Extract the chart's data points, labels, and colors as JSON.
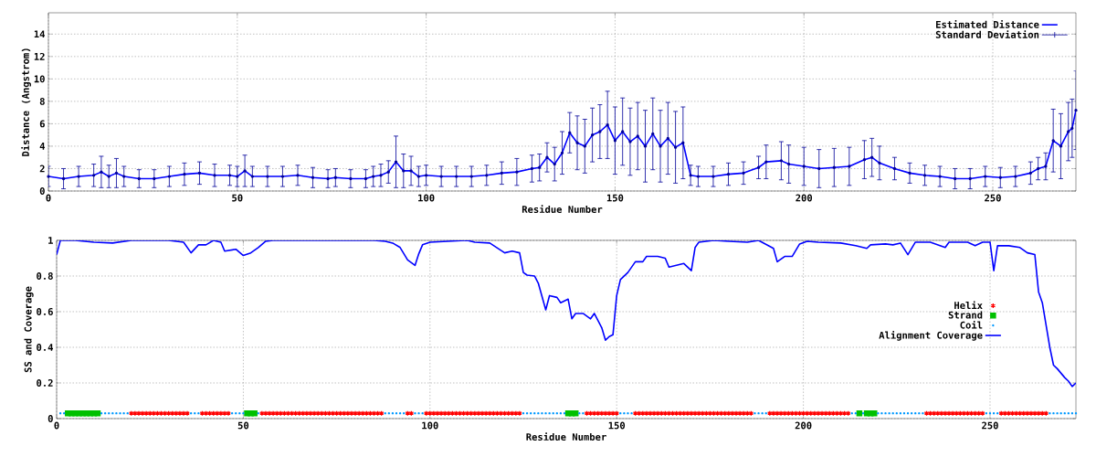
{
  "chart_data": [
    {
      "type": "line",
      "xlabel": "Residue Number",
      "ylabel": "Distance (Angstrom)",
      "xlim": [
        0,
        272
      ],
      "ylim": [
        0,
        15.9
      ],
      "xticks": [
        0,
        50,
        100,
        150,
        200,
        250
      ],
      "yticks": [
        0,
        2,
        4,
        6,
        8,
        10,
        12,
        14
      ],
      "grid": true,
      "legend": "top right",
      "x": [
        0,
        4,
        8,
        12,
        14,
        16,
        18,
        20,
        24,
        28,
        32,
        36,
        40,
        44,
        48,
        50,
        52,
        54,
        58,
        62,
        66,
        70,
        74,
        76,
        80,
        84,
        86,
        88,
        90,
        92,
        94,
        96,
        98,
        100,
        104,
        108,
        112,
        116,
        120,
        124,
        128,
        130,
        132,
        134,
        136,
        138,
        140,
        142,
        144,
        146,
        148,
        150,
        152,
        154,
        156,
        158,
        160,
        162,
        164,
        166,
        168,
        170,
        172,
        176,
        180,
        184,
        188,
        190,
        194,
        196,
        200,
        204,
        208,
        212,
        216,
        218,
        220,
        224,
        228,
        232,
        236,
        240,
        244,
        248,
        252,
        256,
        260,
        262,
        264,
        266,
        268,
        270,
        271,
        272
      ],
      "series": [
        {
          "name": "Estimated Distance",
          "color": "#0000ff",
          "values": [
            1.3,
            1.1,
            1.3,
            1.4,
            1.7,
            1.3,
            1.6,
            1.3,
            1.1,
            1.1,
            1.3,
            1.5,
            1.6,
            1.4,
            1.4,
            1.3,
            1.8,
            1.3,
            1.3,
            1.3,
            1.4,
            1.2,
            1.1,
            1.2,
            1.1,
            1.1,
            1.3,
            1.4,
            1.7,
            2.6,
            1.8,
            1.8,
            1.3,
            1.4,
            1.3,
            1.3,
            1.3,
            1.4,
            1.6,
            1.7,
            2.0,
            2.1,
            3.0,
            2.4,
            3.4,
            5.2,
            4.3,
            4.0,
            5.0,
            5.3,
            5.9,
            4.5,
            5.3,
            4.4,
            4.9,
            4.0,
            5.1,
            4.0,
            4.7,
            3.9,
            4.3,
            1.4,
            1.3,
            1.3,
            1.5,
            1.6,
            2.1,
            2.6,
            2.7,
            2.4,
            2.2,
            2.0,
            2.1,
            2.2,
            2.8,
            3.0,
            2.5,
            2.0,
            1.6,
            1.4,
            1.3,
            1.1,
            1.1,
            1.3,
            1.2,
            1.3,
            1.6,
            2.0,
            2.2,
            4.5,
            4.0,
            5.3,
            5.6,
            7.2
          ]
        },
        {
          "name": "Standard Deviation",
          "type": "scatter",
          "marker": "none",
          "color": "#000099",
          "values": [
            1.3,
            1.1,
            1.3,
            1.4,
            1.7,
            1.3,
            1.6,
            1.3,
            1.1,
            1.1,
            1.3,
            1.5,
            1.6,
            1.4,
            1.4,
            1.3,
            1.8,
            1.3,
            1.3,
            1.3,
            1.4,
            1.2,
            1.1,
            1.2,
            1.1,
            1.1,
            1.3,
            1.4,
            1.7,
            2.6,
            1.8,
            1.8,
            1.3,
            1.4,
            1.3,
            1.3,
            1.3,
            1.4,
            1.6,
            1.7,
            2.0,
            2.1,
            3.0,
            2.4,
            3.4,
            5.2,
            4.3,
            4.0,
            5.0,
            5.3,
            5.9,
            4.5,
            5.3,
            4.4,
            4.9,
            4.0,
            5.1,
            4.0,
            4.7,
            3.9,
            4.3,
            1.4,
            1.3,
            1.3,
            1.5,
            1.6,
            2.1,
            2.6,
            2.7,
            2.4,
            2.2,
            2.0,
            2.1,
            2.2,
            2.8,
            3.0,
            2.5,
            2.0,
            1.6,
            1.4,
            1.3,
            1.1,
            1.1,
            1.3,
            1.2,
            1.3,
            1.6,
            2.0,
            2.2,
            4.5,
            4.0,
            5.3,
            5.6,
            7.2
          ],
          "errors": [
            0.9,
            0.9,
            0.9,
            1.0,
            1.4,
            1.0,
            1.3,
            0.9,
            0.8,
            0.8,
            0.9,
            1.0,
            1.0,
            1.0,
            0.9,
            0.9,
            1.4,
            0.9,
            0.9,
            0.9,
            0.9,
            0.9,
            0.8,
            0.8,
            0.8,
            0.8,
            0.9,
            1.0,
            1.0,
            2.3,
            1.5,
            1.3,
            0.9,
            0.9,
            0.9,
            0.9,
            0.9,
            0.9,
            1.0,
            1.2,
            1.2,
            1.2,
            1.3,
            1.5,
            1.9,
            1.8,
            2.4,
            2.4,
            2.4,
            2.4,
            3.0,
            3.0,
            3.0,
            3.0,
            3.0,
            3.2,
            3.2,
            3.2,
            3.2,
            3.2,
            3.2,
            0.9,
            0.9,
            0.9,
            1.0,
            1.0,
            1.0,
            1.5,
            1.7,
            1.7,
            1.7,
            1.7,
            1.7,
            1.7,
            1.7,
            1.7,
            1.5,
            1.0,
            0.9,
            0.9,
            0.9,
            0.9,
            0.9,
            0.9,
            0.9,
            0.9,
            1.0,
            1.0,
            1.2,
            2.8,
            2.9,
            2.6,
            2.6,
            3.5
          ]
        }
      ]
    },
    {
      "type": "line",
      "xlabel": "Residue Number",
      "ylabel": "SS and Coverage",
      "xlim": [
        0,
        273
      ],
      "ylim": [
        0,
        1
      ],
      "xticks": [
        0,
        50,
        100,
        150,
        200,
        250
      ],
      "yticks": [
        0,
        0.2,
        0.4,
        0.6,
        0.8,
        1
      ],
      "grid": true,
      "legend": "right",
      "series": [
        {
          "name": "Helix",
          "type": "scatter",
          "marker": "cross",
          "color": "#ff0000",
          "x": [
            20,
            21,
            22,
            23,
            24,
            25,
            26,
            27,
            28,
            29,
            30,
            31,
            32,
            33,
            34,
            35,
            39,
            40,
            41,
            42,
            43,
            44,
            45,
            46,
            55,
            56,
            57,
            58,
            59,
            60,
            61,
            62,
            63,
            64,
            65,
            66,
            67,
            68,
            69,
            70,
            71,
            72,
            73,
            74,
            75,
            76,
            77,
            78,
            79,
            80,
            81,
            82,
            83,
            84,
            85,
            86,
            87,
            94,
            95,
            99,
            100,
            101,
            102,
            103,
            104,
            105,
            106,
            107,
            108,
            109,
            110,
            111,
            112,
            113,
            114,
            115,
            116,
            117,
            118,
            119,
            120,
            121,
            122,
            123,
            124,
            142,
            143,
            144,
            145,
            146,
            147,
            148,
            149,
            150,
            155,
            156,
            157,
            158,
            159,
            160,
            161,
            162,
            163,
            164,
            165,
            166,
            167,
            168,
            169,
            170,
            171,
            172,
            173,
            174,
            175,
            176,
            177,
            178,
            179,
            180,
            181,
            182,
            183,
            184,
            185,
            186,
            191,
            192,
            193,
            194,
            195,
            196,
            197,
            198,
            199,
            200,
            201,
            202,
            203,
            204,
            205,
            206,
            207,
            208,
            209,
            210,
            211,
            212,
            233,
            234,
            235,
            236,
            237,
            238,
            239,
            240,
            241,
            242,
            243,
            244,
            245,
            246,
            247,
            248,
            253,
            254,
            255,
            256,
            257,
            258,
            259,
            260,
            261,
            262,
            263,
            264,
            265
          ],
          "values": [
            0.03,
            0.03,
            0.03,
            0.03,
            0.03,
            0.03,
            0.03,
            0.03,
            0.03,
            0.03,
            0.03,
            0.03,
            0.03,
            0.03,
            0.03,
            0.03,
            0.03,
            0.03,
            0.03,
            0.03,
            0.03,
            0.03,
            0.03,
            0.03,
            0.03,
            0.03,
            0.03,
            0.03,
            0.03,
            0.03,
            0.03,
            0.03,
            0.03,
            0.03,
            0.03,
            0.03,
            0.03,
            0.03,
            0.03,
            0.03,
            0.03,
            0.03,
            0.03,
            0.03,
            0.03,
            0.03,
            0.03,
            0.03,
            0.03,
            0.03,
            0.03,
            0.03,
            0.03,
            0.03,
            0.03,
            0.03,
            0.03,
            0.03,
            0.03,
            0.03,
            0.03,
            0.03,
            0.03,
            0.03,
            0.03,
            0.03,
            0.03,
            0.03,
            0.03,
            0.03,
            0.03,
            0.03,
            0.03,
            0.03,
            0.03,
            0.03,
            0.03,
            0.03,
            0.03,
            0.03,
            0.03,
            0.03,
            0.03,
            0.03,
            0.03,
            0.03,
            0.03,
            0.03,
            0.03,
            0.03,
            0.03,
            0.03,
            0.03,
            0.03,
            0.03,
            0.03,
            0.03,
            0.03,
            0.03,
            0.03,
            0.03,
            0.03,
            0.03,
            0.03,
            0.03,
            0.03,
            0.03,
            0.03,
            0.03,
            0.03,
            0.03,
            0.03,
            0.03,
            0.03,
            0.03,
            0.03,
            0.03,
            0.03,
            0.03,
            0.03,
            0.03,
            0.03,
            0.03,
            0.03,
            0.03,
            0.03,
            0.03,
            0.03,
            0.03,
            0.03,
            0.03,
            0.03,
            0.03,
            0.03,
            0.03,
            0.03,
            0.03,
            0.03,
            0.03,
            0.03,
            0.03,
            0.03,
            0.03,
            0.03,
            0.03,
            0.03,
            0.03,
            0.03,
            0.03,
            0.03,
            0.03,
            0.03,
            0.03,
            0.03,
            0.03,
            0.03,
            0.03,
            0.03,
            0.03,
            0.03,
            0.03,
            0.03,
            0.03,
            0.03,
            0.03,
            0.03,
            0.03,
            0.03,
            0.03,
            0.03,
            0.03,
            0.03,
            0.03,
            0.03,
            0.03,
            0.03,
            0.03
          ]
        },
        {
          "name": "Strand",
          "type": "scatter",
          "marker": "square",
          "color": "#00c000",
          "x": [
            3,
            4,
            5,
            6,
            7,
            8,
            9,
            10,
            11,
            51,
            52,
            53,
            137,
            138,
            139,
            215,
            217,
            218,
            219
          ],
          "values": [
            0.03,
            0.03,
            0.03,
            0.03,
            0.03,
            0.03,
            0.03,
            0.03,
            0.03,
            0.03,
            0.03,
            0.03,
            0.03,
            0.03,
            0.03,
            0.03,
            0.03,
            0.03,
            0.03
          ]
        },
        {
          "name": "Coil",
          "type": "scatter",
          "marker": "circle",
          "color": "#0099ff",
          "x": [
            1,
            2,
            12,
            13,
            14,
            15,
            16,
            17,
            18,
            19,
            36,
            37,
            38,
            47,
            48,
            49,
            50,
            54,
            88,
            89,
            90,
            91,
            92,
            93,
            96,
            97,
            98,
            125,
            126,
            127,
            128,
            129,
            130,
            131,
            132,
            133,
            134,
            135,
            136,
            140,
            141,
            151,
            152,
            153,
            154,
            187,
            188,
            189,
            190,
            213,
            214,
            216,
            220,
            221,
            222,
            223,
            224,
            225,
            226,
            227,
            228,
            229,
            230,
            231,
            232,
            249,
            250,
            251,
            252,
            266,
            267,
            268,
            269,
            270,
            271,
            272,
            273
          ],
          "values": [
            0.03,
            0.03,
            0.03,
            0.03,
            0.03,
            0.03,
            0.03,
            0.03,
            0.03,
            0.03,
            0.03,
            0.03,
            0.03,
            0.03,
            0.03,
            0.03,
            0.03,
            0.03,
            0.03,
            0.03,
            0.03,
            0.03,
            0.03,
            0.03,
            0.03,
            0.03,
            0.03,
            0.03,
            0.03,
            0.03,
            0.03,
            0.03,
            0.03,
            0.03,
            0.03,
            0.03,
            0.03,
            0.03,
            0.03,
            0.03,
            0.03,
            0.03,
            0.03,
            0.03,
            0.03,
            0.03,
            0.03,
            0.03,
            0.03,
            0.03,
            0.03,
            0.03,
            0.03,
            0.03,
            0.03,
            0.03,
            0.03,
            0.03,
            0.03,
            0.03,
            0.03,
            0.03,
            0.03,
            0.03,
            0.03,
            0.03,
            0.03,
            0.03,
            0.03,
            0.03,
            0.03,
            0.03,
            0.03,
            0.03,
            0.03,
            0.03,
            0.03
          ]
        },
        {
          "name": "Alignment Coverage",
          "color": "#0000ff",
          "x": [
            0,
            1,
            5,
            10,
            15,
            20,
            30,
            34,
            36,
            38,
            40,
            42,
            44,
            45,
            48,
            50,
            52,
            54,
            56,
            58,
            70,
            85,
            88,
            90,
            92,
            94,
            96,
            97,
            98,
            100,
            110,
            112,
            116,
            120,
            122,
            124,
            125,
            126,
            128,
            129,
            131,
            132,
            134,
            135,
            137,
            138,
            139,
            141,
            143,
            144,
            146,
            147,
            148,
            149,
            150,
            151,
            153,
            155,
            157,
            158,
            161,
            163,
            164,
            166,
            168,
            170,
            171,
            172,
            176,
            180,
            185,
            188,
            192,
            193,
            195,
            197,
            199,
            201,
            204,
            210,
            214,
            217,
            218,
            222,
            224,
            226,
            228,
            230,
            234,
            236,
            238,
            239,
            244,
            246,
            248,
            250,
            251,
            252,
            255,
            258,
            260,
            262,
            263,
            264,
            266,
            267,
            268,
            270,
            271,
            272,
            273
          ],
          "values": [
            0.92,
            1,
            1,
            0.99,
            0.985,
            1,
            1,
            0.99,
            0.93,
            0.975,
            0.975,
            1,
            0.99,
            0.94,
            0.95,
            0.915,
            0.93,
            0.96,
            0.995,
            1,
            1,
            1,
            0.995,
            0.985,
            0.96,
            0.89,
            0.86,
            0.925,
            0.975,
            0.99,
            1,
            0.99,
            0.985,
            0.93,
            0.94,
            0.93,
            0.82,
            0.805,
            0.8,
            0.76,
            0.61,
            0.69,
            0.68,
            0.65,
            0.67,
            0.56,
            0.59,
            0.59,
            0.56,
            0.59,
            0.51,
            0.44,
            0.46,
            0.47,
            0.69,
            0.78,
            0.82,
            0.88,
            0.88,
            0.91,
            0.91,
            0.9,
            0.85,
            0.86,
            0.87,
            0.83,
            0.96,
            0.99,
            1,
            0.995,
            0.99,
            1,
            0.955,
            0.88,
            0.91,
            0.91,
            0.98,
            0.995,
            0.99,
            0.985,
            0.97,
            0.955,
            0.975,
            0.98,
            0.975,
            0.985,
            0.92,
            0.99,
            0.99,
            0.975,
            0.96,
            0.99,
            0.99,
            0.97,
            0.99,
            0.99,
            0.83,
            0.97,
            0.97,
            0.96,
            0.93,
            0.92,
            0.71,
            0.65,
            0.4,
            0.3,
            0.28,
            0.23,
            0.21,
            0.18,
            0.2
          ]
        }
      ]
    }
  ]
}
